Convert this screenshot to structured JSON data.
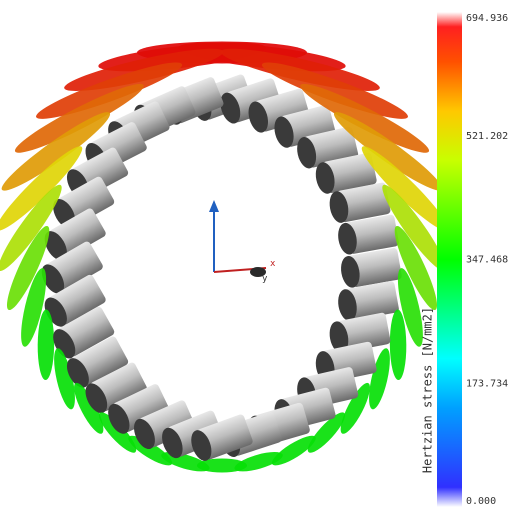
{
  "colorbar": {
    "label": "Hertzian stress [N/mm2]",
    "range": [
      0,
      694.936
    ],
    "ticks": [
      {
        "value": 0,
        "label": "0.000"
      },
      {
        "value": 173.734,
        "label": "173.734"
      },
      {
        "value": 347.468,
        "label": "347.468"
      },
      {
        "value": 521.202,
        "label": "521.202"
      },
      {
        "value": 694.936,
        "label": "694.936"
      }
    ]
  },
  "axes": {
    "x": "x",
    "y": "y"
  }
}
